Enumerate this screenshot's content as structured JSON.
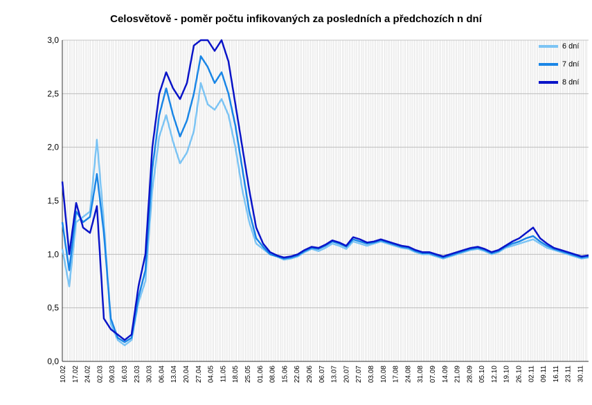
{
  "chart_data": {
    "type": "line",
    "title": "Celosvětově - poměr počtu infikovaných za posledních a předchozích n dní",
    "xlabel": "",
    "ylabel": "",
    "ylim": [
      0,
      3
    ],
    "yticks": [
      "0,0",
      "0,5",
      "1,0",
      "1,5",
      "2,0",
      "2,5",
      "3,0"
    ],
    "xticks": [
      "10.02",
      "17.02",
      "24.02",
      "02.03",
      "09.03",
      "16.03",
      "23.03",
      "30.03",
      "06.04",
      "13.04",
      "20.04",
      "27.04",
      "04.05",
      "11.05",
      "18.05",
      "25.05",
      "01.06",
      "08.06",
      "15.06",
      "22.06",
      "29.06",
      "06.07",
      "13.07",
      "20.07",
      "27.07",
      "03.08",
      "10.08",
      "17.08",
      "24.08",
      "31.08",
      "07.09",
      "14.09",
      "21.09",
      "28.09",
      "05.10",
      "12.10",
      "19.10",
      "26.10",
      "02.11",
      "09.11",
      "16.11",
      "23.11",
      "30.11"
    ],
    "grid": true,
    "legend_position": "top-right",
    "series": [
      {
        "name": "6 dní",
        "color": "#7cc4f4",
        "points": [
          [
            0,
            1.05
          ],
          [
            1,
            0.7
          ],
          [
            2,
            1.3
          ],
          [
            3,
            1.35
          ],
          [
            4,
            1.4
          ],
          [
            5,
            2.07
          ],
          [
            6,
            1.3
          ],
          [
            7,
            0.35
          ],
          [
            8,
            0.2
          ],
          [
            9,
            0.15
          ],
          [
            10,
            0.2
          ],
          [
            11,
            0.55
          ],
          [
            12,
            0.75
          ],
          [
            13,
            1.6
          ],
          [
            14,
            2.1
          ],
          [
            15,
            2.3
          ],
          [
            16,
            2.05
          ],
          [
            17,
            1.85
          ],
          [
            18,
            1.95
          ],
          [
            19,
            2.15
          ],
          [
            20,
            2.6
          ],
          [
            21,
            2.4
          ],
          [
            22,
            2.35
          ],
          [
            23,
            2.45
          ],
          [
            24,
            2.3
          ],
          [
            25,
            2.0
          ],
          [
            26,
            1.6
          ],
          [
            27,
            1.3
          ],
          [
            28,
            1.1
          ],
          [
            29,
            1.05
          ],
          [
            30,
            1.0
          ],
          [
            31,
            0.98
          ],
          [
            32,
            0.95
          ],
          [
            33,
            0.96
          ],
          [
            34,
            0.98
          ],
          [
            35,
            1.02
          ],
          [
            36,
            1.05
          ],
          [
            37,
            1.03
          ],
          [
            38,
            1.06
          ],
          [
            39,
            1.1
          ],
          [
            40,
            1.08
          ],
          [
            41,
            1.05
          ],
          [
            42,
            1.12
          ],
          [
            43,
            1.1
          ],
          [
            44,
            1.08
          ],
          [
            45,
            1.1
          ],
          [
            46,
            1.12
          ],
          [
            47,
            1.1
          ],
          [
            48,
            1.08
          ],
          [
            49,
            1.06
          ],
          [
            50,
            1.05
          ],
          [
            51,
            1.02
          ],
          [
            52,
            1.0
          ],
          [
            53,
            1.0
          ],
          [
            54,
            0.98
          ],
          [
            55,
            0.96
          ],
          [
            56,
            0.98
          ],
          [
            57,
            1.0
          ],
          [
            58,
            1.02
          ],
          [
            59,
            1.04
          ],
          [
            60,
            1.05
          ],
          [
            61,
            1.03
          ],
          [
            62,
            1.0
          ],
          [
            63,
            1.02
          ],
          [
            64,
            1.06
          ],
          [
            65,
            1.08
          ],
          [
            66,
            1.1
          ],
          [
            67,
            1.12
          ],
          [
            68,
            1.14
          ],
          [
            69,
            1.1
          ],
          [
            70,
            1.06
          ],
          [
            71,
            1.04
          ],
          [
            72,
            1.02
          ],
          [
            73,
            1.0
          ],
          [
            74,
            0.98
          ],
          [
            75,
            0.96
          ],
          [
            76,
            0.97
          ]
        ]
      },
      {
        "name": "7 dní",
        "color": "#1a86e6",
        "points": [
          [
            0,
            1.3
          ],
          [
            1,
            0.85
          ],
          [
            2,
            1.4
          ],
          [
            3,
            1.3
          ],
          [
            4,
            1.35
          ],
          [
            5,
            1.75
          ],
          [
            6,
            1.2
          ],
          [
            7,
            0.4
          ],
          [
            8,
            0.22
          ],
          [
            9,
            0.18
          ],
          [
            10,
            0.22
          ],
          [
            11,
            0.6
          ],
          [
            12,
            0.85
          ],
          [
            13,
            1.8
          ],
          [
            14,
            2.3
          ],
          [
            15,
            2.55
          ],
          [
            16,
            2.3
          ],
          [
            17,
            2.1
          ],
          [
            18,
            2.25
          ],
          [
            19,
            2.5
          ],
          [
            20,
            2.85
          ],
          [
            21,
            2.75
          ],
          [
            22,
            2.6
          ],
          [
            23,
            2.7
          ],
          [
            24,
            2.5
          ],
          [
            25,
            2.2
          ],
          [
            26,
            1.8
          ],
          [
            27,
            1.4
          ],
          [
            28,
            1.15
          ],
          [
            29,
            1.07
          ],
          [
            30,
            1.0
          ],
          [
            31,
            0.98
          ],
          [
            32,
            0.96
          ],
          [
            33,
            0.97
          ],
          [
            34,
            0.99
          ],
          [
            35,
            1.03
          ],
          [
            36,
            1.06
          ],
          [
            37,
            1.05
          ],
          [
            38,
            1.08
          ],
          [
            39,
            1.12
          ],
          [
            40,
            1.1
          ],
          [
            41,
            1.07
          ],
          [
            42,
            1.14
          ],
          [
            43,
            1.12
          ],
          [
            44,
            1.1
          ],
          [
            45,
            1.11
          ],
          [
            46,
            1.13
          ],
          [
            47,
            1.11
          ],
          [
            48,
            1.09
          ],
          [
            49,
            1.07
          ],
          [
            50,
            1.06
          ],
          [
            51,
            1.03
          ],
          [
            52,
            1.01
          ],
          [
            53,
            1.01
          ],
          [
            54,
            0.99
          ],
          [
            55,
            0.97
          ],
          [
            56,
            0.99
          ],
          [
            57,
            1.01
          ],
          [
            58,
            1.03
          ],
          [
            59,
            1.05
          ],
          [
            60,
            1.06
          ],
          [
            61,
            1.04
          ],
          [
            62,
            1.01
          ],
          [
            63,
            1.03
          ],
          [
            64,
            1.07
          ],
          [
            65,
            1.1
          ],
          [
            66,
            1.12
          ],
          [
            67,
            1.15
          ],
          [
            68,
            1.17
          ],
          [
            69,
            1.12
          ],
          [
            70,
            1.08
          ],
          [
            71,
            1.05
          ],
          [
            72,
            1.03
          ],
          [
            73,
            1.01
          ],
          [
            74,
            0.99
          ],
          [
            75,
            0.97
          ],
          [
            76,
            0.98
          ]
        ]
      },
      {
        "name": "8 dní",
        "color": "#0a14c8",
        "points": [
          [
            0,
            1.68
          ],
          [
            1,
            1.0
          ],
          [
            2,
            1.48
          ],
          [
            3,
            1.25
          ],
          [
            4,
            1.2
          ],
          [
            5,
            1.45
          ],
          [
            6,
            0.4
          ],
          [
            7,
            0.3
          ],
          [
            8,
            0.25
          ],
          [
            9,
            0.2
          ],
          [
            10,
            0.25
          ],
          [
            11,
            0.7
          ],
          [
            12,
            1.0
          ],
          [
            13,
            2.0
          ],
          [
            14,
            2.5
          ],
          [
            15,
            2.7
          ],
          [
            16,
            2.55
          ],
          [
            17,
            2.45
          ],
          [
            18,
            2.6
          ],
          [
            19,
            2.95
          ],
          [
            20,
            3.0
          ],
          [
            21,
            3.0
          ],
          [
            22,
            2.9
          ],
          [
            23,
            3.0
          ],
          [
            24,
            2.8
          ],
          [
            25,
            2.4
          ],
          [
            26,
            2.0
          ],
          [
            27,
            1.6
          ],
          [
            28,
            1.25
          ],
          [
            29,
            1.1
          ],
          [
            30,
            1.02
          ],
          [
            31,
            0.99
          ],
          [
            32,
            0.97
          ],
          [
            33,
            0.98
          ],
          [
            34,
            1.0
          ],
          [
            35,
            1.04
          ],
          [
            36,
            1.07
          ],
          [
            37,
            1.06
          ],
          [
            38,
            1.09
          ],
          [
            39,
            1.13
          ],
          [
            40,
            1.11
          ],
          [
            41,
            1.08
          ],
          [
            42,
            1.16
          ],
          [
            43,
            1.14
          ],
          [
            44,
            1.11
          ],
          [
            45,
            1.12
          ],
          [
            46,
            1.14
          ],
          [
            47,
            1.12
          ],
          [
            48,
            1.1
          ],
          [
            49,
            1.08
          ],
          [
            50,
            1.07
          ],
          [
            51,
            1.04
          ],
          [
            52,
            1.02
          ],
          [
            53,
            1.02
          ],
          [
            54,
            1.0
          ],
          [
            55,
            0.98
          ],
          [
            56,
            1.0
          ],
          [
            57,
            1.02
          ],
          [
            58,
            1.04
          ],
          [
            59,
            1.06
          ],
          [
            60,
            1.07
          ],
          [
            61,
            1.05
          ],
          [
            62,
            1.02
          ],
          [
            63,
            1.04
          ],
          [
            64,
            1.08
          ],
          [
            65,
            1.12
          ],
          [
            66,
            1.15
          ],
          [
            67,
            1.2
          ],
          [
            68,
            1.25
          ],
          [
            69,
            1.15
          ],
          [
            70,
            1.1
          ],
          [
            71,
            1.06
          ],
          [
            72,
            1.04
          ],
          [
            73,
            1.02
          ],
          [
            74,
            1.0
          ],
          [
            75,
            0.98
          ],
          [
            76,
            0.99
          ]
        ]
      }
    ]
  }
}
